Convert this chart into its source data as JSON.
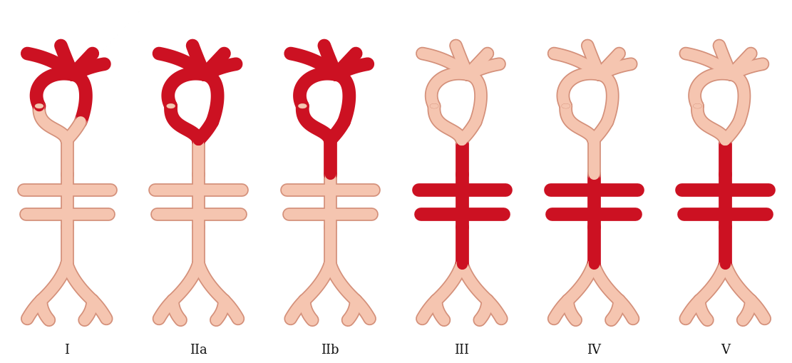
{
  "background_color": "#ffffff",
  "fill_color": "#f5c5b0",
  "stroke_color": "#cc1122",
  "light_stroke": "#d4907a",
  "labels": [
    "I",
    "IIa",
    "IIb",
    "III",
    "IV",
    "V"
  ],
  "fig_width": 11.11,
  "fig_height": 5.09,
  "dpi": 100,
  "red_configs": [
    {
      "arch": true,
      "desc_upper": false,
      "desc_lower": false,
      "abdominal": false,
      "branches_upper": true,
      "branches_lower": false
    },
    {
      "arch": true,
      "desc_upper": true,
      "desc_lower": false,
      "abdominal": false,
      "branches_upper": true,
      "branches_lower": false
    },
    {
      "arch": true,
      "desc_upper": true,
      "desc_lower": true,
      "abdominal": false,
      "branches_upper": true,
      "branches_lower": false
    },
    {
      "arch": false,
      "desc_upper": false,
      "desc_lower": true,
      "abdominal": true,
      "branches_upper": false,
      "branches_lower": true
    },
    {
      "arch": false,
      "desc_upper": false,
      "desc_lower": false,
      "abdominal": true,
      "branches_upper": false,
      "branches_lower": true
    },
    {
      "arch": false,
      "desc_upper": false,
      "desc_lower": true,
      "abdominal": true,
      "branches_upper": false,
      "branches_lower": true
    }
  ]
}
